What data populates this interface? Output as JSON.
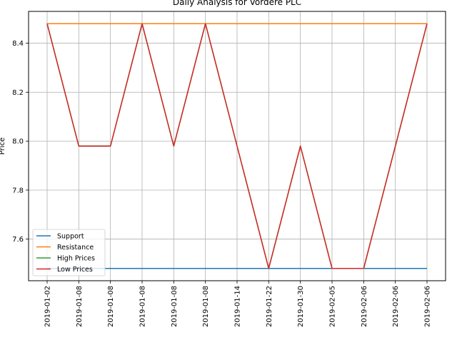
{
  "chart_data": {
    "type": "line",
    "title": "Daily Analysis for Vordere PLC",
    "xlabel": "",
    "ylabel": "Price",
    "x": [
      "2019-01-02",
      "2019-01-08",
      "2019-01-08",
      "2019-01-08",
      "2019-01-08",
      "2019-01-08",
      "2019-01-14",
      "2019-01-22",
      "2019-01-30",
      "2019-02-05",
      "2019-02-06",
      "2019-02-06",
      "2019-02-06"
    ],
    "yticks": [
      "7.6",
      "7.8",
      "8.0",
      "8.2",
      "8.4"
    ],
    "ytick_values": [
      7.6,
      7.8,
      8.0,
      8.2,
      8.4
    ],
    "ylim": [
      7.43,
      8.53
    ],
    "grid": true,
    "legend_position": "lower-left",
    "series": [
      {
        "name": "Support",
        "color": "#1f77b4",
        "values": [
          7.48,
          7.48,
          7.48,
          7.48,
          7.48,
          7.48,
          7.48,
          7.48,
          7.48,
          7.48,
          7.48,
          7.48,
          7.48
        ]
      },
      {
        "name": "Resistance",
        "color": "#ff7f0e",
        "values": [
          8.48,
          8.48,
          8.48,
          8.48,
          8.48,
          8.48,
          8.48,
          8.48,
          8.48,
          8.48,
          8.48,
          8.48,
          8.48
        ]
      },
      {
        "name": "High Prices",
        "color": "#2ca02c",
        "values": [
          8.48,
          7.98,
          7.98,
          8.48,
          7.98,
          8.48,
          7.98,
          7.48,
          7.98,
          7.48,
          7.48,
          7.98,
          8.48
        ]
      },
      {
        "name": "Low Prices",
        "color": "#d62728",
        "values": [
          8.48,
          7.98,
          7.98,
          8.48,
          7.98,
          8.48,
          7.98,
          7.48,
          7.98,
          7.48,
          7.48,
          7.98,
          8.48
        ]
      }
    ]
  }
}
